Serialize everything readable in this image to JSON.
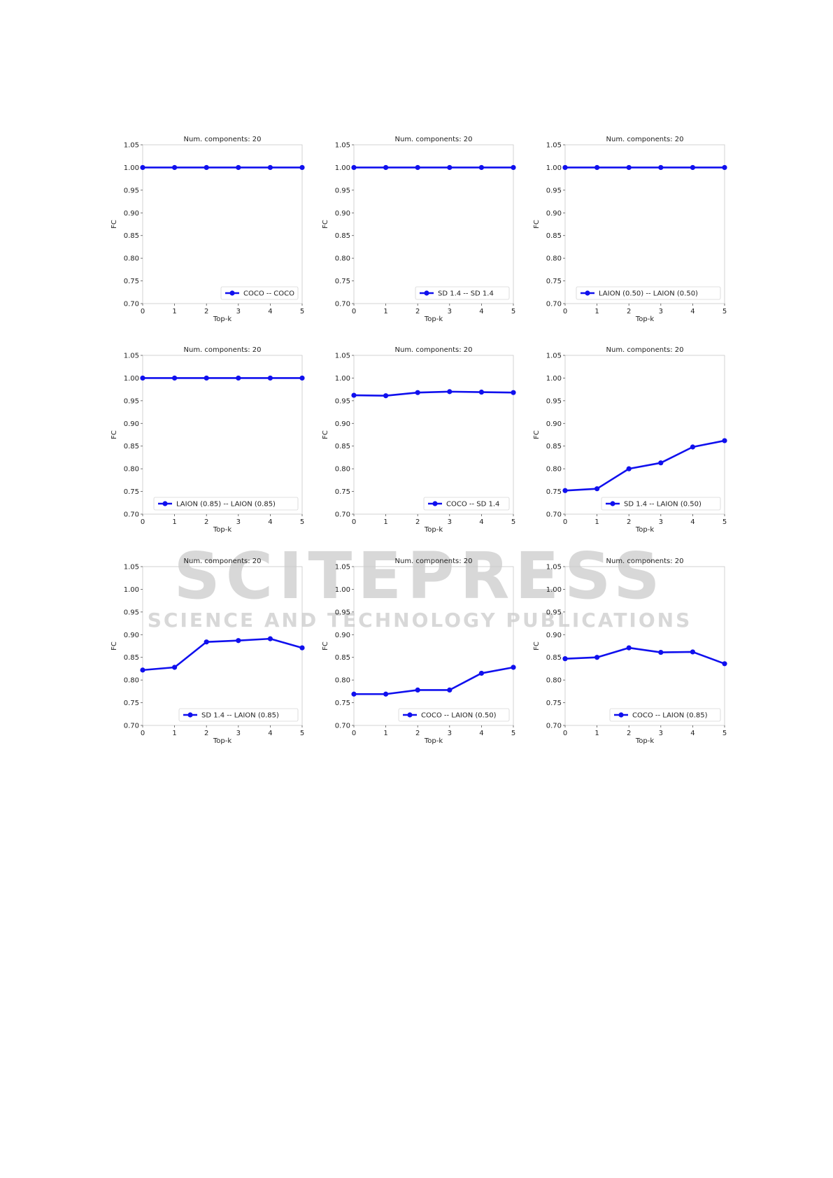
{
  "watermark": {
    "main": "SCITEPRESS",
    "sub": "SCIENCE AND TECHNOLOGY PUBLICATIONS"
  },
  "colors": {
    "line": "#1010ee",
    "axis": "#c8c8c8",
    "text": "#222222"
  },
  "chart_data": [
    {
      "type": "line",
      "title": "Num. components: 20",
      "xlabel": "Top-k",
      "ylabel": "FC",
      "x": [
        0,
        1,
        2,
        3,
        4,
        5
      ],
      "xlim": [
        0,
        5
      ],
      "ylim": [
        0.7,
        1.05
      ],
      "xticks": [
        "0",
        "1",
        "2",
        "3",
        "4",
        "5"
      ],
      "yticks": [
        "0.70",
        "0.75",
        "0.80",
        "0.85",
        "0.90",
        "0.95",
        "1.00",
        "1.05"
      ],
      "legend": "lower right",
      "series": [
        {
          "name": "COCO -- COCO",
          "values": [
            1.0,
            1.0,
            1.0,
            1.0,
            1.0,
            1.0
          ]
        }
      ]
    },
    {
      "type": "line",
      "title": "Num. components: 20",
      "xlabel": "Top-k",
      "ylabel": "FC",
      "x": [
        0,
        1,
        2,
        3,
        4,
        5
      ],
      "xlim": [
        0,
        5
      ],
      "ylim": [
        0.7,
        1.05
      ],
      "xticks": [
        "0",
        "1",
        "2",
        "3",
        "4",
        "5"
      ],
      "yticks": [
        "0.70",
        "0.75",
        "0.80",
        "0.85",
        "0.90",
        "0.95",
        "1.00",
        "1.05"
      ],
      "legend": "lower right",
      "series": [
        {
          "name": "SD 1.4 -- SD 1.4",
          "values": [
            1.0,
            1.0,
            1.0,
            1.0,
            1.0,
            1.0
          ]
        }
      ]
    },
    {
      "type": "line",
      "title": "Num. components: 20",
      "xlabel": "Top-k",
      "ylabel": "FC",
      "x": [
        0,
        1,
        2,
        3,
        4,
        5
      ],
      "xlim": [
        0,
        5
      ],
      "ylim": [
        0.7,
        1.05
      ],
      "xticks": [
        "0",
        "1",
        "2",
        "3",
        "4",
        "5"
      ],
      "yticks": [
        "0.70",
        "0.75",
        "0.80",
        "0.85",
        "0.90",
        "0.95",
        "1.00",
        "1.05"
      ],
      "legend": "lower right",
      "series": [
        {
          "name": "LAION (0.50) -- LAION (0.50)",
          "values": [
            1.0,
            1.0,
            1.0,
            1.0,
            1.0,
            1.0
          ]
        }
      ]
    },
    {
      "type": "line",
      "title": "Num. components: 20",
      "xlabel": "Top-k",
      "ylabel": "FC",
      "x": [
        0,
        1,
        2,
        3,
        4,
        5
      ],
      "xlim": [
        0,
        5
      ],
      "ylim": [
        0.7,
        1.05
      ],
      "xticks": [
        "0",
        "1",
        "2",
        "3",
        "4",
        "5"
      ],
      "yticks": [
        "0.70",
        "0.75",
        "0.80",
        "0.85",
        "0.90",
        "0.95",
        "1.00",
        "1.05"
      ],
      "legend": "lower right",
      "series": [
        {
          "name": "LAION (0.85) -- LAION (0.85)",
          "values": [
            1.0,
            1.0,
            1.0,
            1.0,
            1.0,
            1.0
          ]
        }
      ]
    },
    {
      "type": "line",
      "title": "Num. components: 20",
      "xlabel": "Top-k",
      "ylabel": "FC",
      "x": [
        0,
        1,
        2,
        3,
        4,
        5
      ],
      "xlim": [
        0,
        5
      ],
      "ylim": [
        0.7,
        1.05
      ],
      "xticks": [
        "0",
        "1",
        "2",
        "3",
        "4",
        "5"
      ],
      "yticks": [
        "0.70",
        "0.75",
        "0.80",
        "0.85",
        "0.90",
        "0.95",
        "1.00",
        "1.05"
      ],
      "legend": "lower right",
      "series": [
        {
          "name": "COCO -- SD 1.4",
          "values": [
            0.962,
            0.961,
            0.968,
            0.97,
            0.969,
            0.968
          ]
        }
      ]
    },
    {
      "type": "line",
      "title": "Num. components: 20",
      "xlabel": "Top-k",
      "ylabel": "FC",
      "x": [
        0,
        1,
        2,
        3,
        4,
        5
      ],
      "xlim": [
        0,
        5
      ],
      "ylim": [
        0.7,
        1.05
      ],
      "xticks": [
        "0",
        "1",
        "2",
        "3",
        "4",
        "5"
      ],
      "yticks": [
        "0.70",
        "0.75",
        "0.80",
        "0.85",
        "0.90",
        "0.95",
        "1.00",
        "1.05"
      ],
      "legend": "lower right",
      "series": [
        {
          "name": "SD 1.4 -- LAION (0.50)",
          "values": [
            0.752,
            0.756,
            0.8,
            0.813,
            0.848,
            0.862
          ]
        }
      ]
    },
    {
      "type": "line",
      "title": "Num. components: 20",
      "xlabel": "Top-k",
      "ylabel": "FC",
      "x": [
        0,
        1,
        2,
        3,
        4,
        5
      ],
      "xlim": [
        0,
        5
      ],
      "ylim": [
        0.7,
        1.05
      ],
      "xticks": [
        "0",
        "1",
        "2",
        "3",
        "4",
        "5"
      ],
      "yticks": [
        "0.70",
        "0.75",
        "0.80",
        "0.85",
        "0.90",
        "0.95",
        "1.00",
        "1.05"
      ],
      "legend": "lower right",
      "series": [
        {
          "name": "SD 1.4 -- LAION (0.85)",
          "values": [
            0.822,
            0.828,
            0.884,
            0.887,
            0.891,
            0.871
          ]
        }
      ]
    },
    {
      "type": "line",
      "title": "Num. components: 20",
      "xlabel": "Top-k",
      "ylabel": "FC",
      "x": [
        0,
        1,
        2,
        3,
        4,
        5
      ],
      "xlim": [
        0,
        5
      ],
      "ylim": [
        0.7,
        1.05
      ],
      "xticks": [
        "0",
        "1",
        "2",
        "3",
        "4",
        "5"
      ],
      "yticks": [
        "0.70",
        "0.75",
        "0.80",
        "0.85",
        "0.90",
        "0.95",
        "1.00",
        "1.05"
      ],
      "legend": "lower right",
      "series": [
        {
          "name": "COCO -- LAION (0.50)",
          "values": [
            0.769,
            0.769,
            0.778,
            0.778,
            0.815,
            0.828
          ]
        }
      ]
    },
    {
      "type": "line",
      "title": "Num. components: 20",
      "xlabel": "Top-k",
      "ylabel": "FC",
      "x": [
        0,
        1,
        2,
        3,
        4,
        5
      ],
      "xlim": [
        0,
        5
      ],
      "ylim": [
        0.7,
        1.05
      ],
      "xticks": [
        "0",
        "1",
        "2",
        "3",
        "4",
        "5"
      ],
      "yticks": [
        "0.70",
        "0.75",
        "0.80",
        "0.85",
        "0.90",
        "0.95",
        "1.00",
        "1.05"
      ],
      "legend": "lower right",
      "series": [
        {
          "name": "COCO -- LAION (0.85)",
          "values": [
            0.847,
            0.85,
            0.871,
            0.861,
            0.862,
            0.836
          ]
        }
      ]
    }
  ]
}
